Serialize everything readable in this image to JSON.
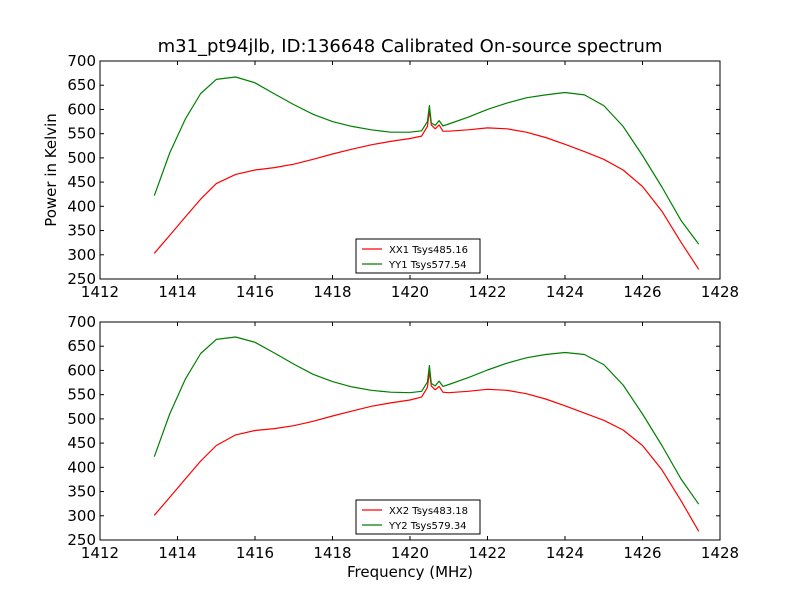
{
  "figure": {
    "title": "m31_pt94jlb, ID:136648 Calibrated On-source spectrum",
    "xlabel": "Frequency (MHz)",
    "ylabel": "Power in Kelvin"
  },
  "chart_data": [
    {
      "type": "line",
      "title": "m31_pt94jlb, ID:136648 Calibrated On-source spectrum",
      "xlabel": "",
      "ylabel": "Power in Kelvin",
      "xlim": [
        1412,
        1428
      ],
      "ylim": [
        250,
        700
      ],
      "xticks": [
        "1412",
        "1414",
        "1416",
        "1418",
        "1420",
        "1422",
        "1424",
        "1426",
        "1428"
      ],
      "yticks": [
        "250",
        "300",
        "350",
        "400",
        "450",
        "500",
        "550",
        "600",
        "650",
        "700"
      ],
      "grid": false,
      "legend_position": "lower-center",
      "series": [
        {
          "name": "XX1 Tsys485.16",
          "color": "#ff0000",
          "x": [
            1413.4,
            1413.8,
            1414.2,
            1414.6,
            1415.0,
            1415.5,
            1416.0,
            1416.5,
            1417.0,
            1417.5,
            1418.0,
            1418.5,
            1419.0,
            1419.5,
            1420.0,
            1420.3,
            1420.45,
            1420.5,
            1420.55,
            1420.65,
            1420.75,
            1420.85,
            1421.0,
            1421.5,
            1422.0,
            1422.5,
            1423.0,
            1423.5,
            1424.0,
            1424.5,
            1425.0,
            1425.5,
            1426.0,
            1426.5,
            1427.0,
            1427.45
          ],
          "y": [
            303,
            340,
            378,
            415,
            447,
            466,
            475,
            480,
            487,
            497,
            508,
            518,
            527,
            534,
            540,
            545,
            565,
            598,
            568,
            560,
            568,
            555,
            555,
            558,
            562,
            560,
            553,
            542,
            528,
            513,
            497,
            475,
            441,
            390,
            325,
            270
          ]
        },
        {
          "name": "YY1 Tsys577.54",
          "color": "#008000",
          "x": [
            1413.4,
            1413.8,
            1414.2,
            1414.6,
            1415.0,
            1415.5,
            1416.0,
            1416.5,
            1417.0,
            1417.5,
            1418.0,
            1418.5,
            1419.0,
            1419.5,
            1420.0,
            1420.3,
            1420.45,
            1420.5,
            1420.55,
            1420.65,
            1420.75,
            1420.85,
            1421.0,
            1421.5,
            1422.0,
            1422.5,
            1423.0,
            1423.5,
            1424.0,
            1424.5,
            1425.0,
            1425.5,
            1426.0,
            1426.5,
            1427.0,
            1427.45
          ],
          "y": [
            422,
            510,
            580,
            633,
            662,
            667,
            655,
            632,
            610,
            590,
            575,
            565,
            558,
            553,
            553,
            556,
            575,
            608,
            572,
            567,
            577,
            566,
            570,
            584,
            600,
            613,
            624,
            630,
            635,
            630,
            608,
            565,
            505,
            440,
            370,
            322
          ]
        }
      ]
    },
    {
      "type": "line",
      "title": "",
      "xlabel": "Frequency (MHz)",
      "ylabel": "",
      "xlim": [
        1412,
        1428
      ],
      "ylim": [
        250,
        700
      ],
      "xticks": [
        "1412",
        "1414",
        "1416",
        "1418",
        "1420",
        "1422",
        "1424",
        "1426",
        "1428"
      ],
      "yticks": [
        "250",
        "300",
        "350",
        "400",
        "450",
        "500",
        "550",
        "600",
        "650",
        "700"
      ],
      "grid": false,
      "legend_position": "lower-center",
      "series": [
        {
          "name": "XX2 Tsys483.18",
          "color": "#ff0000",
          "x": [
            1413.4,
            1413.8,
            1414.2,
            1414.6,
            1415.0,
            1415.5,
            1416.0,
            1416.5,
            1417.0,
            1417.5,
            1418.0,
            1418.5,
            1419.0,
            1419.5,
            1420.0,
            1420.3,
            1420.45,
            1420.5,
            1420.55,
            1420.65,
            1420.75,
            1420.85,
            1421.0,
            1421.5,
            1422.0,
            1422.5,
            1423.0,
            1423.5,
            1424.0,
            1424.5,
            1425.0,
            1425.5,
            1426.0,
            1426.5,
            1427.0,
            1427.45
          ],
          "y": [
            301,
            338,
            376,
            413,
            445,
            467,
            476,
            480,
            486,
            495,
            506,
            516,
            526,
            533,
            539,
            545,
            565,
            597,
            568,
            560,
            567,
            555,
            554,
            557,
            561,
            559,
            552,
            541,
            527,
            512,
            497,
            477,
            445,
            395,
            330,
            268
          ]
        },
        {
          "name": "YY2 Tsys579.34",
          "color": "#008000",
          "x": [
            1413.4,
            1413.8,
            1414.2,
            1414.6,
            1415.0,
            1415.5,
            1416.0,
            1416.5,
            1417.0,
            1417.5,
            1418.0,
            1418.5,
            1419.0,
            1419.5,
            1420.0,
            1420.3,
            1420.45,
            1420.5,
            1420.55,
            1420.65,
            1420.75,
            1420.85,
            1421.0,
            1421.5,
            1422.0,
            1422.5,
            1423.0,
            1423.5,
            1424.0,
            1424.5,
            1425.0,
            1425.5,
            1426.0,
            1426.5,
            1427.0,
            1427.45
          ],
          "y": [
            422,
            510,
            582,
            635,
            664,
            669,
            658,
            636,
            613,
            592,
            577,
            566,
            559,
            555,
            554,
            557,
            576,
            610,
            573,
            568,
            578,
            567,
            571,
            585,
            601,
            615,
            626,
            633,
            637,
            633,
            612,
            570,
            510,
            445,
            375,
            324
          ]
        }
      ]
    }
  ]
}
